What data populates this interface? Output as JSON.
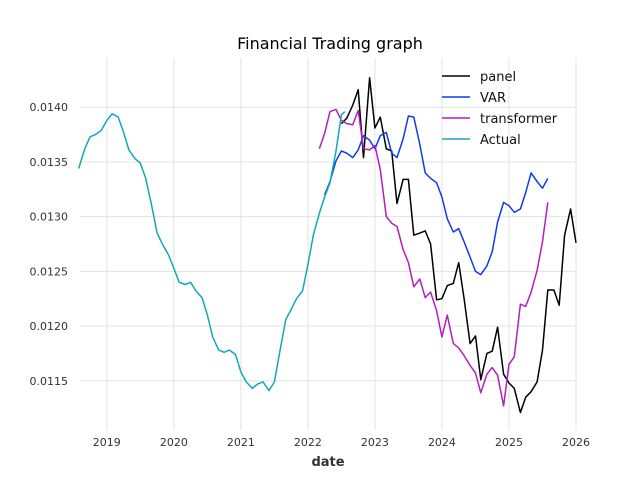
{
  "chart_data": {
    "type": "line",
    "title": "Financial Trading graph",
    "xlabel": "date",
    "ylabel": "",
    "xlim": [
      2018.6,
      2026.0
    ],
    "ylim": [
      0.01105,
      0.01445
    ],
    "x_ticks": [
      {
        "value": 2019,
        "label": "2019"
      },
      {
        "value": 2020,
        "label": "2020"
      },
      {
        "value": 2021,
        "label": "2021"
      },
      {
        "value": 2022,
        "label": "2022"
      },
      {
        "value": 2023,
        "label": "2023"
      },
      {
        "value": 2024,
        "label": "2024"
      },
      {
        "value": 2025,
        "label": "2025"
      },
      {
        "value": 2026,
        "label": "2026"
      }
    ],
    "y_ticks": [
      {
        "value": 0.0115,
        "label": "0.0115"
      },
      {
        "value": 0.012,
        "label": "0.0120"
      },
      {
        "value": 0.0125,
        "label": "0.0125"
      },
      {
        "value": 0.013,
        "label": "0.0130"
      },
      {
        "value": 0.0135,
        "label": "0.0135"
      },
      {
        "value": 0.014,
        "label": "0.0140"
      }
    ],
    "grid": true,
    "legend": "top-right",
    "series": [
      {
        "name": "panel",
        "color": "#000000",
        "points": [
          [
            2022.5,
            0.01385
          ],
          [
            2022.58,
            0.0139
          ],
          [
            2022.67,
            0.01402
          ],
          [
            2022.75,
            0.01416
          ],
          [
            2022.83,
            0.01354
          ],
          [
            2022.92,
            0.01427
          ],
          [
            2023.0,
            0.01381
          ],
          [
            2023.08,
            0.01391
          ],
          [
            2023.17,
            0.01362
          ],
          [
            2023.25,
            0.0136
          ],
          [
            2023.33,
            0.01312
          ],
          [
            2023.42,
            0.01334
          ],
          [
            2023.5,
            0.01334
          ],
          [
            2023.58,
            0.01283
          ],
          [
            2023.67,
            0.01285
          ],
          [
            2023.75,
            0.01287
          ],
          [
            2023.83,
            0.01275
          ],
          [
            2023.92,
            0.01224
          ],
          [
            2024.0,
            0.01225
          ],
          [
            2024.08,
            0.01237
          ],
          [
            2024.17,
            0.01239
          ],
          [
            2024.25,
            0.01258
          ],
          [
            2024.33,
            0.01225
          ],
          [
            2024.42,
            0.01184
          ],
          [
            2024.5,
            0.01191
          ],
          [
            2024.58,
            0.01151
          ],
          [
            2024.67,
            0.01175
          ],
          [
            2024.75,
            0.01177
          ],
          [
            2024.83,
            0.01199
          ],
          [
            2024.92,
            0.01156
          ],
          [
            2025.0,
            0.01148
          ],
          [
            2025.08,
            0.01143
          ],
          [
            2025.17,
            0.01121
          ],
          [
            2025.25,
            0.01135
          ],
          [
            2025.33,
            0.0114
          ],
          [
            2025.42,
            0.01149
          ],
          [
            2025.5,
            0.01178
          ],
          [
            2025.58,
            0.01233
          ],
          [
            2025.67,
            0.01233
          ],
          [
            2025.75,
            0.01219
          ],
          [
            2025.83,
            0.01283
          ],
          [
            2025.92,
            0.01307
          ],
          [
            2026.0,
            0.01276
          ]
        ]
      },
      {
        "name": "VAR",
        "color": "#0b3de8",
        "points": [
          [
            2022.25,
            0.0132
          ],
          [
            2022.33,
            0.01332
          ],
          [
            2022.42,
            0.01351
          ],
          [
            2022.5,
            0.0136
          ],
          [
            2022.58,
            0.01358
          ],
          [
            2022.67,
            0.01354
          ],
          [
            2022.75,
            0.01361
          ],
          [
            2022.83,
            0.01374
          ],
          [
            2022.92,
            0.0137
          ],
          [
            2023.0,
            0.01362
          ],
          [
            2023.08,
            0.01374
          ],
          [
            2023.17,
            0.01377
          ],
          [
            2023.25,
            0.01358
          ],
          [
            2023.33,
            0.01354
          ],
          [
            2023.42,
            0.01371
          ],
          [
            2023.5,
            0.01392
          ],
          [
            2023.58,
            0.01391
          ],
          [
            2023.67,
            0.01366
          ],
          [
            2023.75,
            0.0134
          ],
          [
            2023.83,
            0.01335
          ],
          [
            2023.92,
            0.01331
          ],
          [
            2024.0,
            0.01318
          ],
          [
            2024.08,
            0.01298
          ],
          [
            2024.17,
            0.01286
          ],
          [
            2024.25,
            0.01289
          ],
          [
            2024.33,
            0.01277
          ],
          [
            2024.42,
            0.01263
          ],
          [
            2024.5,
            0.0125
          ],
          [
            2024.58,
            0.01247
          ],
          [
            2024.67,
            0.01255
          ],
          [
            2024.75,
            0.01268
          ],
          [
            2024.83,
            0.01295
          ],
          [
            2024.92,
            0.01313
          ],
          [
            2025.0,
            0.0131
          ],
          [
            2025.08,
            0.01304
          ],
          [
            2025.17,
            0.01307
          ],
          [
            2025.25,
            0.01322
          ],
          [
            2025.33,
            0.0134
          ],
          [
            2025.42,
            0.01332
          ],
          [
            2025.5,
            0.01326
          ],
          [
            2025.58,
            0.01335
          ]
        ]
      },
      {
        "name": "transformer",
        "color": "#b21fbf",
        "points": [
          [
            2022.17,
            0.01362
          ],
          [
            2022.25,
            0.01376
          ],
          [
            2022.33,
            0.01396
          ],
          [
            2022.42,
            0.01398
          ],
          [
            2022.5,
            0.01388
          ],
          [
            2022.58,
            0.01385
          ],
          [
            2022.67,
            0.01384
          ],
          [
            2022.75,
            0.01397
          ],
          [
            2022.83,
            0.01362
          ],
          [
            2022.92,
            0.01361
          ],
          [
            2023.0,
            0.01365
          ],
          [
            2023.08,
            0.01343
          ],
          [
            2023.17,
            0.013
          ],
          [
            2023.25,
            0.01294
          ],
          [
            2023.33,
            0.01291
          ],
          [
            2023.42,
            0.0127
          ],
          [
            2023.5,
            0.01258
          ],
          [
            2023.58,
            0.01236
          ],
          [
            2023.67,
            0.01243
          ],
          [
            2023.75,
            0.01226
          ],
          [
            2023.83,
            0.01231
          ],
          [
            2023.92,
            0.01214
          ],
          [
            2024.0,
            0.0119
          ],
          [
            2024.08,
            0.0121
          ],
          [
            2024.17,
            0.01184
          ],
          [
            2024.25,
            0.0118
          ],
          [
            2024.33,
            0.01173
          ],
          [
            2024.42,
            0.01164
          ],
          [
            2024.5,
            0.01157
          ],
          [
            2024.58,
            0.01139
          ],
          [
            2024.67,
            0.01156
          ],
          [
            2024.75,
            0.01162
          ],
          [
            2024.83,
            0.01155
          ],
          [
            2024.92,
            0.01127
          ],
          [
            2025.0,
            0.01165
          ],
          [
            2025.08,
            0.01172
          ],
          [
            2025.17,
            0.0122
          ],
          [
            2025.25,
            0.01218
          ],
          [
            2025.33,
            0.01231
          ],
          [
            2025.42,
            0.01251
          ],
          [
            2025.5,
            0.01277
          ],
          [
            2025.58,
            0.01313
          ]
        ]
      },
      {
        "name": "Actual",
        "color": "#11a8bd",
        "points": [
          [
            2018.58,
            0.01344
          ],
          [
            2018.67,
            0.01362
          ],
          [
            2018.75,
            0.01373
          ],
          [
            2018.83,
            0.01375
          ],
          [
            2018.92,
            0.01379
          ],
          [
            2019.0,
            0.01388
          ],
          [
            2019.08,
            0.01394
          ],
          [
            2019.17,
            0.01391
          ],
          [
            2019.25,
            0.01377
          ],
          [
            2019.33,
            0.01361
          ],
          [
            2019.42,
            0.01353
          ],
          [
            2019.5,
            0.01349
          ],
          [
            2019.58,
            0.01335
          ],
          [
            2019.67,
            0.0131
          ],
          [
            2019.75,
            0.01285
          ],
          [
            2019.83,
            0.01275
          ],
          [
            2019.92,
            0.01265
          ],
          [
            2020.0,
            0.01253
          ],
          [
            2020.08,
            0.0124
          ],
          [
            2020.17,
            0.01238
          ],
          [
            2020.25,
            0.0124
          ],
          [
            2020.33,
            0.01232
          ],
          [
            2020.42,
            0.01226
          ],
          [
            2020.5,
            0.0121
          ],
          [
            2020.58,
            0.0119
          ],
          [
            2020.67,
            0.01178
          ],
          [
            2020.75,
            0.01176
          ],
          [
            2020.83,
            0.01178
          ],
          [
            2020.92,
            0.01174
          ],
          [
            2021.0,
            0.01158
          ],
          [
            2021.08,
            0.01149
          ],
          [
            2021.17,
            0.01143
          ],
          [
            2021.25,
            0.01147
          ],
          [
            2021.33,
            0.01149
          ],
          [
            2021.42,
            0.01141
          ],
          [
            2021.5,
            0.01149
          ],
          [
            2021.58,
            0.01176
          ],
          [
            2021.67,
            0.01206
          ],
          [
            2021.75,
            0.01215
          ],
          [
            2021.83,
            0.01225
          ],
          [
            2021.92,
            0.01232
          ],
          [
            2022.0,
            0.01256
          ],
          [
            2022.08,
            0.01283
          ],
          [
            2022.17,
            0.01303
          ],
          [
            2022.25,
            0.01318
          ],
          [
            2022.33,
            0.01331
          ],
          [
            2022.42,
            0.0136
          ],
          [
            2022.5,
            0.01393
          ],
          [
            2022.55,
            0.01396
          ]
        ]
      }
    ]
  }
}
